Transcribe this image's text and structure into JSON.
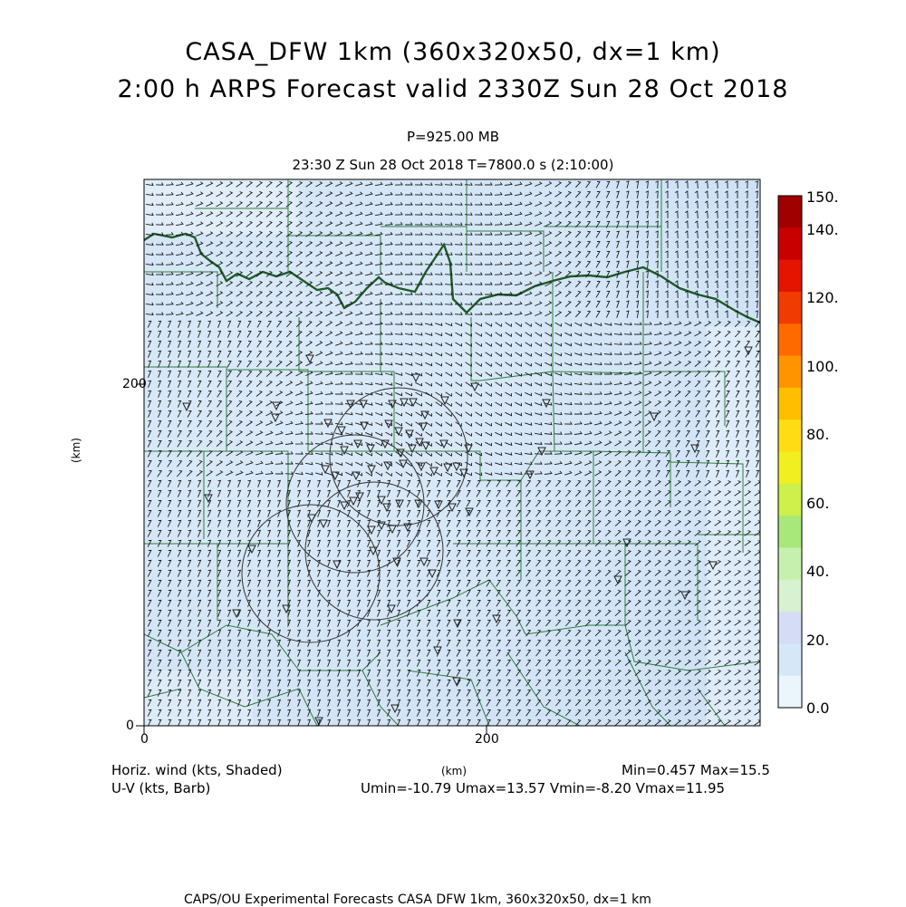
{
  "header": {
    "title_line1": "CASA_DFW 1km (360x320x50, dx=1 km)",
    "title_line2": "2:00 h ARPS Forecast valid 2330Z Sun 28 Oct 2018",
    "pressure": "P=925.00 MB",
    "time_info": "23:30 Z Sun 28 Oct 2018   T=7800.0 s (2:10:00)"
  },
  "axes": {
    "x_label": "(km)",
    "y_label": "(km)",
    "x_ticks": [
      "0",
      "200"
    ],
    "y_ticks": [
      "0",
      "200"
    ],
    "x_range_km": [
      0,
      360
    ],
    "y_range_km": [
      0,
      320
    ]
  },
  "colorbar": {
    "labels": [
      "150.",
      "140.",
      "120.",
      "100.",
      "80.",
      "60.",
      "40.",
      "20.",
      "0.0"
    ],
    "colors": [
      "#a00000",
      "#c80000",
      "#e41400",
      "#f03c00",
      "#ff6a00",
      "#ff9400",
      "#ffbe00",
      "#ffdc14",
      "#f2ef20",
      "#cdf04a",
      "#a8e87a",
      "#c6f0ae",
      "#d6f2d0",
      "#d4dcf6",
      "#d4e8f8",
      "#eaf6fc"
    ]
  },
  "footer": {
    "left_line1": "Horiz. wind (kts, Shaded)",
    "left_line2": "U-V (kts, Barb)",
    "center_unit": "(km)",
    "minmax": "Min=0.457 Max=15.5",
    "uv_stats": "Umin=-10.79 Umax=13.57 Vmin=-8.20 Vmax=11.95",
    "credit": "CAPS/OU Experimental Forecasts  CASA DFW 1km, 360x320x50, dx=1 km"
  },
  "map": {
    "shading_color": "#d8eaf8",
    "shading_light": "#eaf4fc",
    "border_color": "#2e7d3a",
    "river_color": "#1f5a2a",
    "barb_color": "#1a1a1a"
  }
}
